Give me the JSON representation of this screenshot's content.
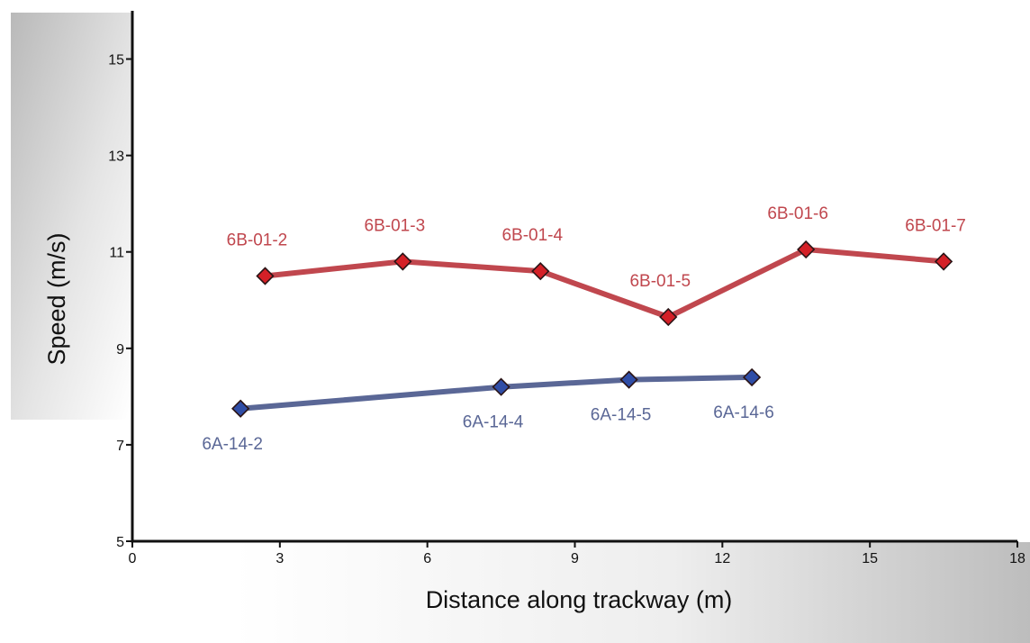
{
  "chart_data": {
    "type": "line",
    "xlabel": "Distance along trackway (m)",
    "ylabel": "Speed (m/s)",
    "xlim": [
      0,
      18
    ],
    "ylim": [
      5,
      16
    ],
    "x_ticks": [
      "0",
      "3",
      "6",
      "9",
      "12",
      "15",
      "18"
    ],
    "y_ticks": [
      "5",
      "7",
      "9",
      "11",
      "13",
      "15"
    ],
    "grid": false,
    "series": [
      {
        "color": "#c0474e",
        "marker_color": "#d42027",
        "label_position": "above",
        "points": [
          {
            "label": "6B-01-2",
            "x": 2.7,
            "y": 10.5
          },
          {
            "label": "6B-01-3",
            "x": 5.5,
            "y": 10.8
          },
          {
            "label": "6B-01-4",
            "x": 8.3,
            "y": 10.6
          },
          {
            "label": "6B-01-5",
            "x": 10.9,
            "y": 9.65
          },
          {
            "label": "6B-01-6",
            "x": 13.7,
            "y": 11.05
          },
          {
            "label": "6B-01-7",
            "x": 16.5,
            "y": 10.8
          }
        ]
      },
      {
        "color": "#5a6796",
        "marker_color": "#2f4da6",
        "label_position": "below",
        "points": [
          {
            "label": "6A-14-2",
            "x": 2.2,
            "y": 7.75
          },
          {
            "label": "6A-14-4",
            "x": 7.5,
            "y": 8.2
          },
          {
            "label": "6A-14-5",
            "x": 10.1,
            "y": 8.35
          },
          {
            "label": "6A-14-6",
            "x": 12.6,
            "y": 8.4
          }
        ]
      }
    ]
  }
}
